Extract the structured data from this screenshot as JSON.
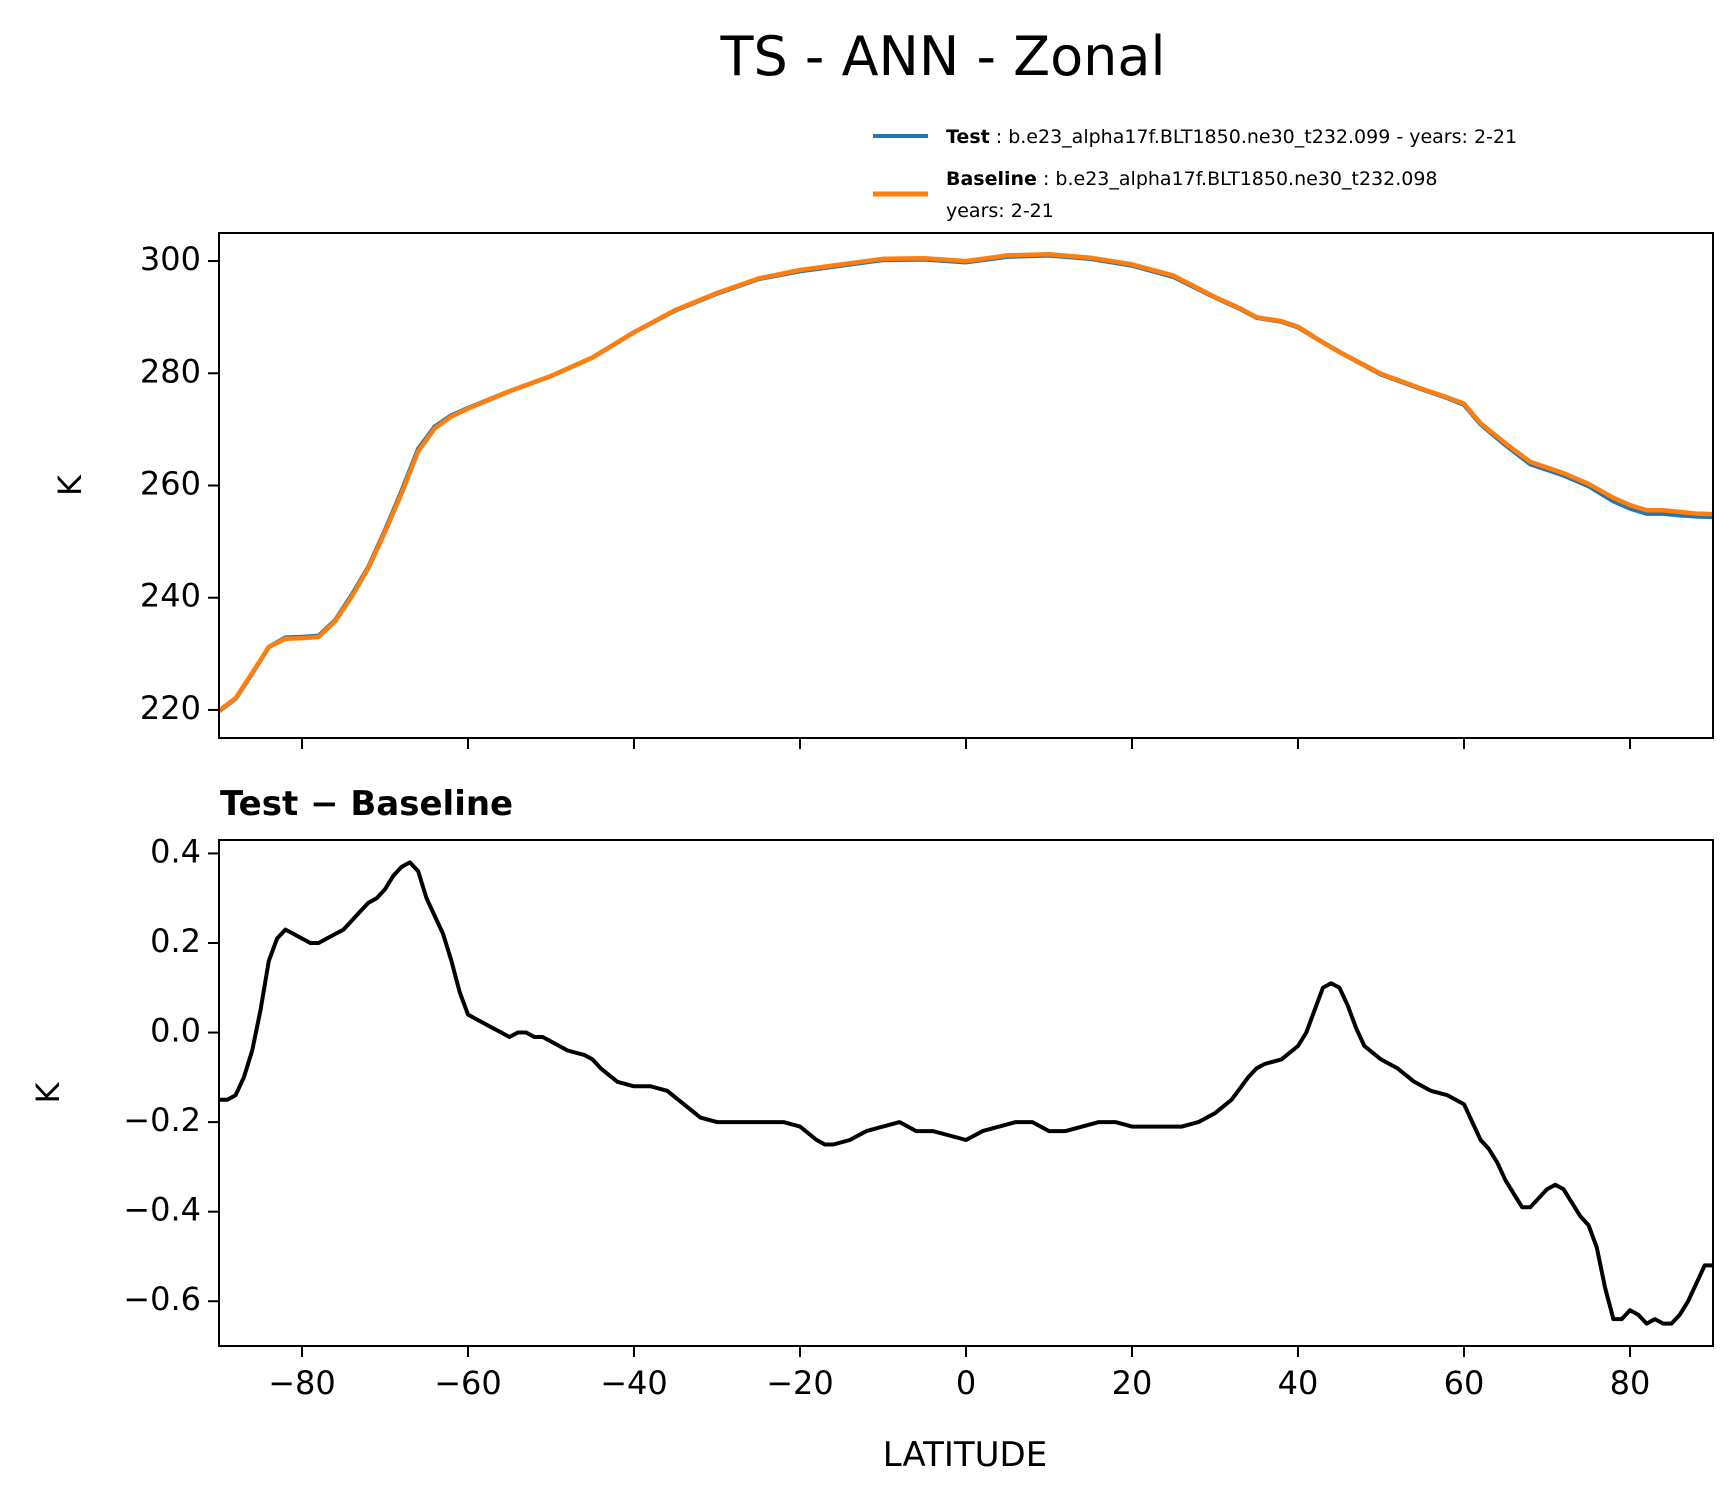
{
  "chart_data": [
    {
      "type": "line",
      "title": "TS - ANN - Zonal",
      "xlabel": "",
      "ylabel": "K",
      "xlim": [
        -90,
        90
      ],
      "ylim": [
        215,
        305
      ],
      "yticks": [
        220,
        240,
        260,
        280,
        300
      ],
      "xticks": [
        -80,
        -60,
        -40,
        -20,
        0,
        20,
        40,
        60,
        80
      ],
      "legend": {
        "position": "top-right",
        "entries": [
          {
            "label_bold": "Test",
            "label_text": ": b.e23_alpha17f.BLT1850.ne30_t232.099 - years: 2-21",
            "label_line2": ""
          },
          {
            "label_bold": "Baseline",
            "label_text": ": b.e23_alpha17f.BLT1850.ne30_t232.098",
            "label_line2": "years: 2-21"
          }
        ]
      },
      "x": [
        -90,
        -88,
        -86,
        -84,
        -82,
        -80,
        -78,
        -76,
        -74,
        -72,
        -70,
        -68,
        -66,
        -64,
        -62,
        -60,
        -55,
        -50,
        -45,
        -40,
        -35,
        -30,
        -25,
        -20,
        -15,
        -10,
        -5,
        0,
        5,
        10,
        15,
        20,
        25,
        30,
        33,
        35,
        38,
        40,
        43,
        45,
        50,
        55,
        58,
        60,
        62,
        65,
        68,
        70,
        72,
        75,
        78,
        80,
        82,
        84,
        86,
        88,
        90
      ],
      "series": [
        {
          "name": "Test",
          "color": "#1f77b4",
          "values": [
            219.8,
            222,
            226.5,
            231.2,
            232.9,
            233.0,
            233.2,
            236,
            240.5,
            245.5,
            252,
            259,
            266.5,
            270.5,
            272.5,
            273.8,
            276.8,
            279.5,
            282.8,
            287.3,
            291.2,
            294.2,
            296.8,
            298.2,
            299.2,
            300.2,
            300.3,
            299.8,
            300.8,
            301.0,
            300.4,
            299.2,
            297.2,
            293.5,
            291.5,
            289.9,
            289.2,
            288.2,
            285.5,
            283.8,
            279.8,
            277.1,
            275.6,
            274.4,
            270.9,
            267.2,
            263.8,
            262.8,
            261.8,
            259.9,
            257.2,
            255.9,
            255.0,
            255.0,
            254.7,
            254.5,
            254.4
          ]
        },
        {
          "name": "Baseline",
          "color": "#ff7f0e",
          "values": [
            219.9,
            222.1,
            226.6,
            231.2,
            232.7,
            232.8,
            233.0,
            235.8,
            240.2,
            245.3,
            251.7,
            258.6,
            266.1,
            270.2,
            272.3,
            273.7,
            276.8,
            279.5,
            282.8,
            287.3,
            291.3,
            294.3,
            296.9,
            298.4,
            299.4,
            300.4,
            300.5,
            300.0,
            301.0,
            301.2,
            300.6,
            299.4,
            297.4,
            293.6,
            291.6,
            290.0,
            289.3,
            288.3,
            285.5,
            283.8,
            279.9,
            277.2,
            275.7,
            274.6,
            271.1,
            267.5,
            264.2,
            263.2,
            262.2,
            260.3,
            257.8,
            256.5,
            255.6,
            255.6,
            255.3,
            255.0,
            254.9
          ]
        }
      ]
    },
    {
      "type": "line",
      "title": "Test − Baseline",
      "xlabel": "LATITUDE",
      "ylabel": "K",
      "xlim": [
        -90,
        90
      ],
      "ylim": [
        -0.7,
        0.43
      ],
      "yticks": [
        0.4,
        0.2,
        0.0,
        -0.2,
        -0.4,
        -0.6
      ],
      "ytick_labels": [
        "0.4",
        "0.2",
        "0.0",
        "−0.2",
        "−0.4",
        "−0.6"
      ],
      "xticks": [
        -80,
        -60,
        -40,
        -20,
        0,
        20,
        40,
        60,
        80
      ],
      "xtick_labels": [
        "−80",
        "−60",
        "−40",
        "−20",
        "0",
        "20",
        "40",
        "60",
        "80"
      ],
      "x": [
        -90,
        -89,
        -88,
        -87,
        -86,
        -85,
        -84,
        -83,
        -82,
        -81,
        -80,
        -79,
        -78,
        -77,
        -76,
        -75,
        -74,
        -73,
        -72,
        -71,
        -70,
        -69,
        -68,
        -67,
        -66,
        -65,
        -64,
        -63,
        -62,
        -61,
        -60,
        -59,
        -58,
        -57,
        -56,
        -55,
        -54,
        -53,
        -52,
        -51,
        -50,
        -48,
        -46,
        -45,
        -44,
        -42,
        -40,
        -39,
        -38,
        -36,
        -34,
        -32,
        -30,
        -29,
        -28,
        -26,
        -24,
        -22,
        -20,
        -18,
        -17,
        -16,
        -14,
        -12,
        -10,
        -8,
        -6,
        -4,
        -2,
        0,
        2,
        4,
        6,
        8,
        10,
        12,
        14,
        16,
        18,
        20,
        22,
        24,
        26,
        28,
        30,
        32,
        34,
        35,
        36,
        38,
        40,
        41,
        42,
        43,
        44,
        45,
        46,
        47,
        48,
        50,
        52,
        54,
        56,
        58,
        59,
        60,
        61,
        62,
        63,
        64,
        65,
        66,
        67,
        68,
        69,
        70,
        71,
        72,
        73,
        74,
        75,
        76,
        77,
        78,
        79,
        80,
        81,
        82,
        83,
        84,
        85,
        86,
        87,
        88,
        89,
        90
      ],
      "series": [
        {
          "name": "Test − Baseline",
          "color": "#000000",
          "values": [
            -0.15,
            -0.15,
            -0.14,
            -0.1,
            -0.04,
            0.05,
            0.16,
            0.21,
            0.23,
            0.22,
            0.21,
            0.2,
            0.2,
            0.21,
            0.22,
            0.23,
            0.25,
            0.27,
            0.29,
            0.3,
            0.32,
            0.35,
            0.37,
            0.38,
            0.36,
            0.3,
            0.26,
            0.22,
            0.16,
            0.09,
            0.04,
            0.03,
            0.02,
            0.01,
            0.0,
            -0.01,
            0.0,
            0.0,
            -0.01,
            -0.01,
            -0.02,
            -0.04,
            -0.05,
            -0.06,
            -0.08,
            -0.11,
            -0.12,
            -0.12,
            -0.12,
            -0.13,
            -0.16,
            -0.19,
            -0.2,
            -0.2,
            -0.2,
            -0.2,
            -0.2,
            -0.2,
            -0.21,
            -0.24,
            -0.25,
            -0.25,
            -0.24,
            -0.22,
            -0.21,
            -0.2,
            -0.22,
            -0.22,
            -0.23,
            -0.24,
            -0.22,
            -0.21,
            -0.2,
            -0.2,
            -0.22,
            -0.22,
            -0.21,
            -0.2,
            -0.2,
            -0.21,
            -0.21,
            -0.21,
            -0.21,
            -0.2,
            -0.18,
            -0.15,
            -0.1,
            -0.08,
            -0.07,
            -0.06,
            -0.03,
            0.0,
            0.05,
            0.1,
            0.11,
            0.1,
            0.06,
            0.01,
            -0.03,
            -0.06,
            -0.08,
            -0.11,
            -0.13,
            -0.14,
            -0.15,
            -0.16,
            -0.2,
            -0.24,
            -0.26,
            -0.29,
            -0.33,
            -0.36,
            -0.39,
            -0.39,
            -0.37,
            -0.35,
            -0.34,
            -0.35,
            -0.38,
            -0.41,
            -0.43,
            -0.48,
            -0.57,
            -0.64,
            -0.64,
            -0.62,
            -0.63,
            -0.65,
            -0.64,
            -0.65,
            -0.65,
            -0.63,
            -0.6,
            -0.56,
            -0.52,
            -0.52
          ]
        }
      ]
    }
  ]
}
